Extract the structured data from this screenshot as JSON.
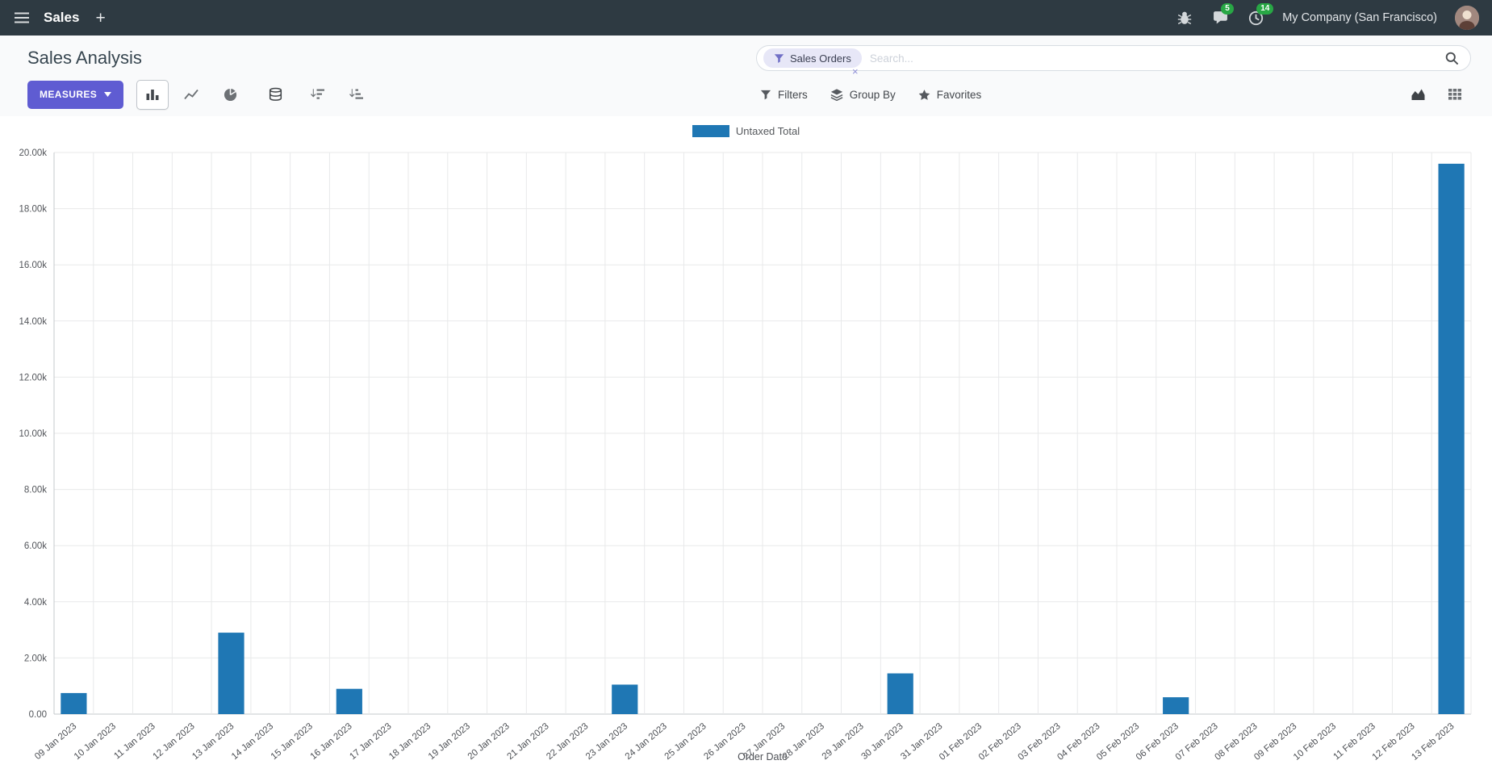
{
  "top_nav": {
    "app_name": "Sales",
    "plus": "+",
    "message_count": "5",
    "activity_count": "14",
    "company": "My Company (San Francisco)"
  },
  "control_panel": {
    "title": "Sales Analysis",
    "search": {
      "facet_label": "Sales Orders",
      "remove_label": "×",
      "placeholder": "Search..."
    },
    "measures_label": "MEASURES",
    "filters_label": "Filters",
    "group_by_label": "Group By",
    "favorites_label": "Favorites"
  },
  "chart_data": {
    "type": "bar",
    "series_name": "Untaxed Total",
    "xlabel": "Order Date",
    "ylabel": "",
    "ylim": [
      0,
      20000
    ],
    "ytick_step": 2000,
    "ytick_labels": [
      "0.00",
      "2.00k",
      "4.00k",
      "6.00k",
      "8.00k",
      "10.00k",
      "12.00k",
      "14.00k",
      "16.00k",
      "18.00k",
      "20.00k"
    ],
    "grid": true,
    "legend_position": "top",
    "bar_color": "#1f77b4",
    "categories": [
      "09 Jan 2023",
      "10 Jan 2023",
      "11 Jan 2023",
      "12 Jan 2023",
      "13 Jan 2023",
      "14 Jan 2023",
      "15 Jan 2023",
      "16 Jan 2023",
      "17 Jan 2023",
      "18 Jan 2023",
      "19 Jan 2023",
      "20 Jan 2023",
      "21 Jan 2023",
      "22 Jan 2023",
      "23 Jan 2023",
      "24 Jan 2023",
      "25 Jan 2023",
      "26 Jan 2023",
      "27 Jan 2023",
      "28 Jan 2023",
      "29 Jan 2023",
      "30 Jan 2023",
      "31 Jan 2023",
      "01 Feb 2023",
      "02 Feb 2023",
      "03 Feb 2023",
      "04 Feb 2023",
      "05 Feb 2023",
      "06 Feb 2023",
      "07 Feb 2023",
      "08 Feb 2023",
      "09 Feb 2023",
      "10 Feb 2023",
      "11 Feb 2023",
      "12 Feb 2023",
      "13 Feb 2023"
    ],
    "values": [
      750,
      0,
      0,
      0,
      2900,
      0,
      0,
      900,
      0,
      0,
      0,
      0,
      0,
      0,
      1050,
      0,
      0,
      0,
      0,
      0,
      0,
      1450,
      0,
      0,
      0,
      0,
      0,
      0,
      600,
      0,
      0,
      0,
      0,
      0,
      0,
      19600
    ]
  }
}
